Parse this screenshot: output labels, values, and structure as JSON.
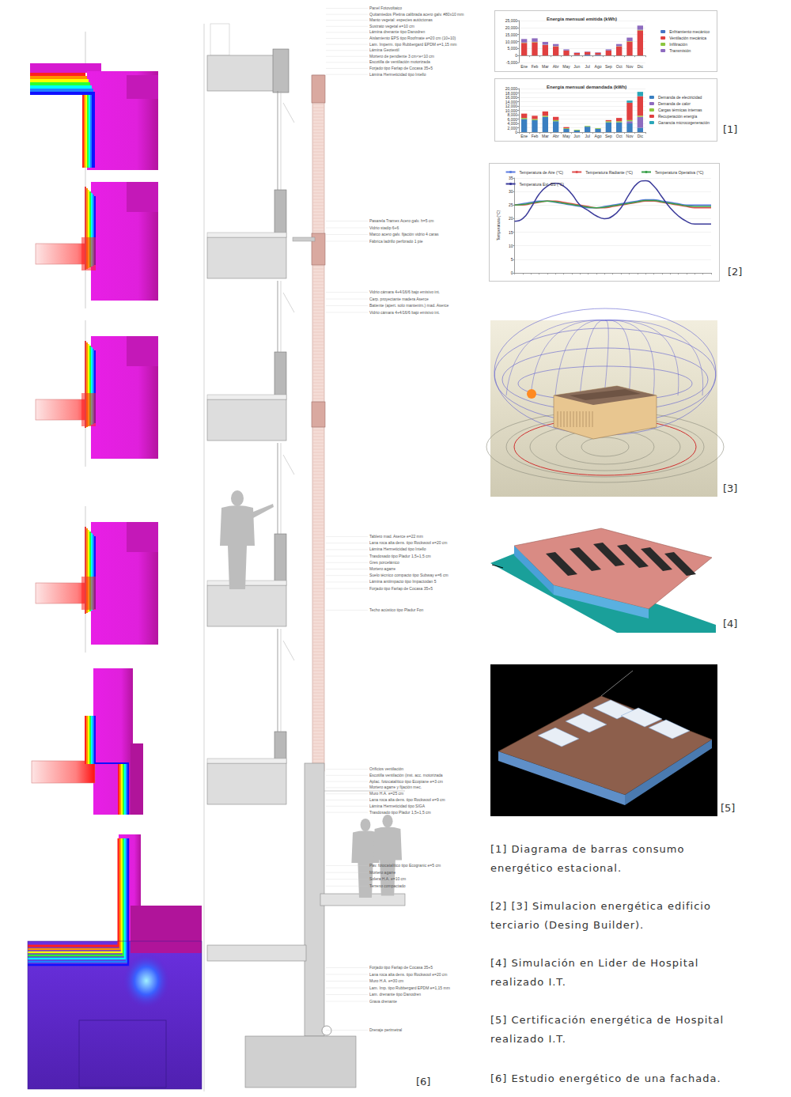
{
  "chart_data": [
    {
      "type": "bar",
      "title": "Energía mensual emitida (kWh)",
      "categories": [
        "Ene",
        "Feb",
        "Mar",
        "Abr",
        "May",
        "Jun",
        "Jul",
        "Ago",
        "Sep",
        "Oct",
        "Nov",
        "Dic"
      ],
      "series": [
        {
          "name": "Enfriamiento mecánico",
          "color": "#4472c4",
          "values": [
            0,
            0,
            0,
            0,
            0,
            300,
            600,
            500,
            0,
            0,
            0,
            0
          ]
        },
        {
          "name": "Ventilación mecánica",
          "color": "#e04040",
          "values": [
            9000,
            9500,
            7500,
            6500,
            3500,
            1500,
            2000,
            1500,
            3500,
            6500,
            10000,
            18000
          ]
        },
        {
          "name": "Infiltración",
          "color": "#8cc63f",
          "values": [
            300,
            300,
            200,
            200,
            100,
            0,
            0,
            0,
            100,
            200,
            300,
            400
          ]
        },
        {
          "name": "Transmisión",
          "color": "#8e6bbf",
          "values": [
            2500,
            2500,
            2000,
            1500,
            800,
            300,
            300,
            300,
            800,
            1500,
            2500,
            3000
          ]
        }
      ],
      "ylim": [
        -5000,
        25000
      ],
      "yticks": [
        -5000,
        0,
        5000,
        10000,
        15000,
        20000,
        25000
      ],
      "stacked": true,
      "legend": "right",
      "grid": true
    },
    {
      "type": "bar",
      "title": "Energía mensual demandada (kWh)",
      "categories": [
        "Ene",
        "Feb",
        "Mar",
        "Abr",
        "May",
        "Jun",
        "Jul",
        "Ago",
        "Sep",
        "Oct",
        "Nov",
        "Dic"
      ],
      "series": [
        {
          "name": "Demanda de electricidad",
          "color": "#3a7fc1",
          "values": [
            6000,
            5500,
            7000,
            5000,
            1500,
            800,
            2500,
            1500,
            4500,
            4500,
            4000,
            2000
          ]
        },
        {
          "name": "Demanda de calor",
          "color": "#8e6bbf",
          "values": [
            0,
            0,
            0,
            0,
            0,
            0,
            0,
            0,
            0,
            0,
            1000,
            5000
          ]
        },
        {
          "name": "Cargas térmicas internas",
          "color": "#8cc63f",
          "values": [
            500,
            500,
            500,
            500,
            300,
            300,
            300,
            300,
            500,
            500,
            500,
            500
          ]
        },
        {
          "name": "Recuperación energía",
          "color": "#e04040",
          "values": [
            2000,
            1500,
            2000,
            1500,
            500,
            0,
            0,
            0,
            500,
            1500,
            8000,
            9000
          ]
        },
        {
          "name": "Ganancia microcogeneración",
          "color": "#2aa6b8",
          "values": [
            0,
            0,
            0,
            0,
            0,
            0,
            0,
            0,
            0,
            0,
            1000,
            2000
          ]
        }
      ],
      "ylim": [
        0,
        20000
      ],
      "yticks": [
        0,
        2000,
        4000,
        6000,
        8000,
        10000,
        12000,
        14000,
        16000,
        18000,
        20000
      ],
      "stacked": true,
      "legend": "right",
      "grid": true
    },
    {
      "type": "line",
      "y_label": "Temperatura (°C)",
      "categories": [
        null,
        null,
        null,
        null,
        null,
        null,
        null,
        null,
        null,
        null,
        null,
        null,
        null,
        null,
        null,
        null,
        null,
        null,
        null,
        null,
        null,
        null,
        null,
        null,
        null
      ],
      "series": [
        {
          "name": "Temperatura de Aire (°C)",
          "color": "#5b7be0",
          "values": [
            25,
            25.5,
            26,
            26.5,
            26.5,
            26,
            25.5,
            25,
            24.5,
            24,
            24,
            24.5,
            25,
            25.5,
            26,
            26.5,
            27,
            27,
            26.5,
            26,
            25.5,
            25,
            25,
            25,
            25
          ]
        },
        {
          "name": "Temperatura Radiante (°C)",
          "color": "#e05050",
          "values": [
            25,
            25,
            25.5,
            26,
            26.5,
            26.5,
            26,
            25.5,
            25,
            24.5,
            24,
            24,
            24.5,
            25,
            25.5,
            26,
            26.5,
            26.5,
            26,
            25.5,
            25,
            24.5,
            24,
            24,
            24
          ]
        },
        {
          "name": "Temperatura Operativa (°C)",
          "color": "#3aa04a",
          "values": [
            25,
            25.2,
            25.7,
            26.2,
            26.5,
            26.2,
            25.7,
            25.2,
            24.7,
            24.2,
            24,
            24.2,
            24.7,
            25.2,
            25.7,
            26.2,
            26.7,
            26.7,
            26.2,
            25.7,
            25.2,
            24.7,
            24.5,
            24.5,
            24.5
          ]
        },
        {
          "name": "Temperatura Ext. BS (°C)",
          "color": "#3b3b9a",
          "values": [
            19,
            20,
            24,
            29,
            32,
            33,
            32,
            29,
            25,
            23,
            21,
            20,
            21,
            24,
            29,
            33,
            34,
            32,
            28,
            24,
            21,
            19,
            18,
            18,
            18
          ]
        }
      ],
      "ylim": [
        0,
        35
      ],
      "yticks": [
        0,
        5,
        10,
        15,
        20,
        25,
        30,
        35
      ],
      "legend": "top",
      "grid": true,
      "tick_labels": "y"
    }
  ],
  "figure_labels": [
    "[1]",
    "[2]",
    "[3]",
    "[4]",
    "[5]",
    "[6]"
  ],
  "captions": [
    "[1] Diagrama de barras consumo energético estacional.",
    "[2] [3] Simulacion energética edificio terciario  (Desing Builder).",
    "[4] Simulación en Lider de Hospital realizado I.T.",
    "[5] Certificación energética de Hospital realizado I.T.",
    "[6] Estudio energético de una fachada."
  ],
  "section_annotations": [
    [
      "Panel Fotovoltaico",
      "Quitamiedos Pletina calibrada acero galv. #80x10 mm",
      "Manto vegetal: especies autóctonas",
      "Sustrato vegetal e=10 cm",
      "Lámina drenante tipo Danodren",
      "Aislamiento EPS tipo Roofmate e=20 cm (10+10)",
      "Lam. Imperm. tipo Rubbergard EPDM e=1,15 mm",
      "Lámina Geotextil",
      "Mortero de pendiente 3 cm<e<10 cm",
      "Escotilla de ventilación motorizada",
      "Forjado tipo Farlap de Cocasa 35+5",
      "Lámina Hermeticidad tipo Intello"
    ],
    [
      "Pasarela Tramex Acero galv. h=5 cm",
      "Vidrio stadip 6+6",
      "Marco acero galv. fijación vidrio 4 caras",
      "Fábrica ladrillo perforado 1 pie"
    ],
    [
      "Vidrio cámara 4+4/16/6 bajo emisivo int.",
      "Carp. proyectante madera Aserce",
      "Batiente (apert. solo mantenim.) mad. Aserce",
      "Vidrio cámara 4+4/16/6 bajo emisivo int."
    ],
    [
      "Tablero mad. Aserce e=22 mm",
      "Lana roca alta dens. tipo Rockwool e=20 cm",
      "Lámina Hermeticidad tipo Intello",
      "Trasdosado tipo Pladur 1,5+1,5 cm",
      "Gres porcelánico",
      "Mortero agarre",
      "Suelo técnico compacto tipo Subway e=6 cm",
      "Lámina antiimpacto tipo Impactodan 5",
      "Forjado tipo Farlap de Cocasa 35+5"
    ],
    [
      "Techo acústico tipo Pladur Fon"
    ],
    [
      "Orificios ventilación",
      "Escotilla ventilación (inst. acc. motorizada",
      "Aplac. fotocatalítico tipo Ecopiane e=3 cm",
      "Mortero agarre y fijación mec.",
      "Muro H.A. e=25 cm",
      "Lana roca alta dens. tipo Rockwool e=9 cm",
      "Lámina Hermeticidad tipo SIGA",
      "Trasdosado tipo Pladur 1,5+1,5 cm"
    ],
    [
      "Pav. fotocatalítico tipo Ecogranic e=5 cm",
      "Mortero agarre",
      "Solera H.A. e=10 cm",
      "Terreno compactado"
    ],
    [
      "Forjado tipo Farlap de Cocasa 35+5",
      "Lana roca alta dens. tipo Rockwool e=20 cm",
      "Muro H.A. e=30 cm",
      "Lam. Imp. tipo Rubbergard EPDM e=1,15 mm",
      "Lam. drenante tipo Danodren",
      "Grava drenante"
    ],
    [
      "Drenaje perimetral"
    ]
  ]
}
